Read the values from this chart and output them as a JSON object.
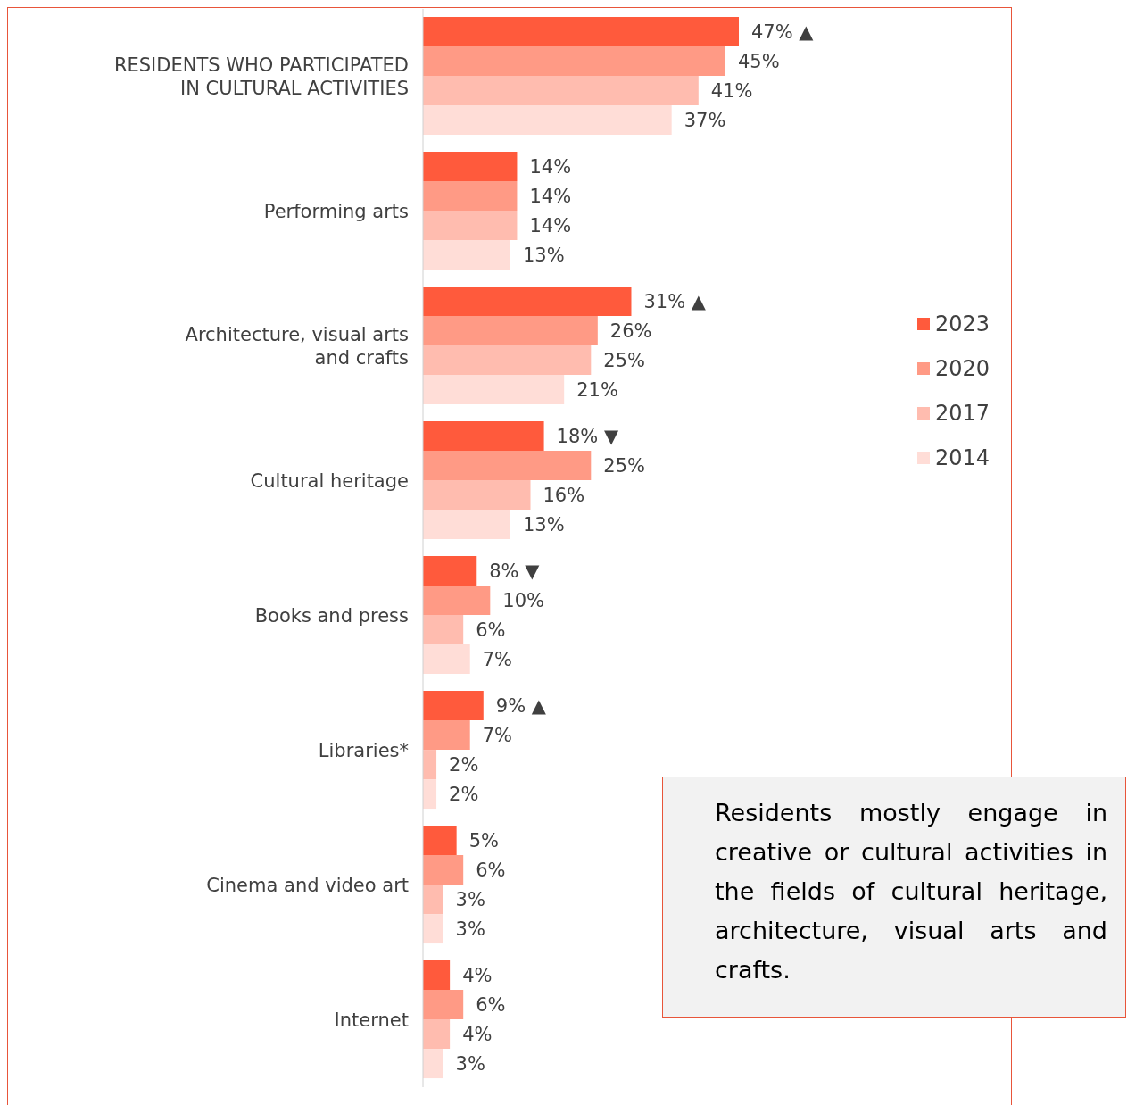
{
  "chart_data": {
    "type": "bar",
    "orientation": "horizontal",
    "categories": [
      "RESIDENTS WHO PARTICIPATED IN CULTURAL ACTIVITIES",
      "Performing arts",
      "Architecture, visual arts and crafts",
      "Cultural heritage",
      "Books and press",
      "Libraries*",
      "Cinema and video art",
      "Internet"
    ],
    "series": [
      {
        "name": "2023",
        "color": "#ff5a3c",
        "values": [
          47,
          14,
          31,
          18,
          8,
          9,
          5,
          4
        ],
        "value_labels": [
          "47% ▲",
          "14%",
          "31% ▲",
          "18% ▼",
          "8% ▼",
          "9% ▲",
          "5%",
          "4%"
        ]
      },
      {
        "name": "2020",
        "color": "#ff9a85",
        "values": [
          45,
          14,
          26,
          25,
          10,
          7,
          6,
          6
        ],
        "value_labels": [
          "45%",
          "14%",
          "26%",
          "25%",
          "10%",
          "7%",
          "6%",
          "6%"
        ]
      },
      {
        "name": "2017",
        "color": "#ffbcaf",
        "values": [
          41,
          14,
          25,
          16,
          6,
          2,
          3,
          4
        ],
        "value_labels": [
          "41%",
          "14%",
          "25%",
          "16%",
          "6%",
          "2%",
          "3%",
          "4%"
        ]
      },
      {
        "name": "2014",
        "color": "#ffddd7",
        "values": [
          37,
          13,
          21,
          13,
          7,
          2,
          3,
          3
        ],
        "value_labels": [
          "37%",
          "13%",
          "21%",
          "13%",
          "7%",
          "2%",
          "3%",
          "3%"
        ]
      }
    ],
    "legend": "right",
    "annotations": [
      "Residents mostly engage in creative or cultural activities in the fields of cultural heritage, architecture, visual arts and crafts."
    ]
  }
}
